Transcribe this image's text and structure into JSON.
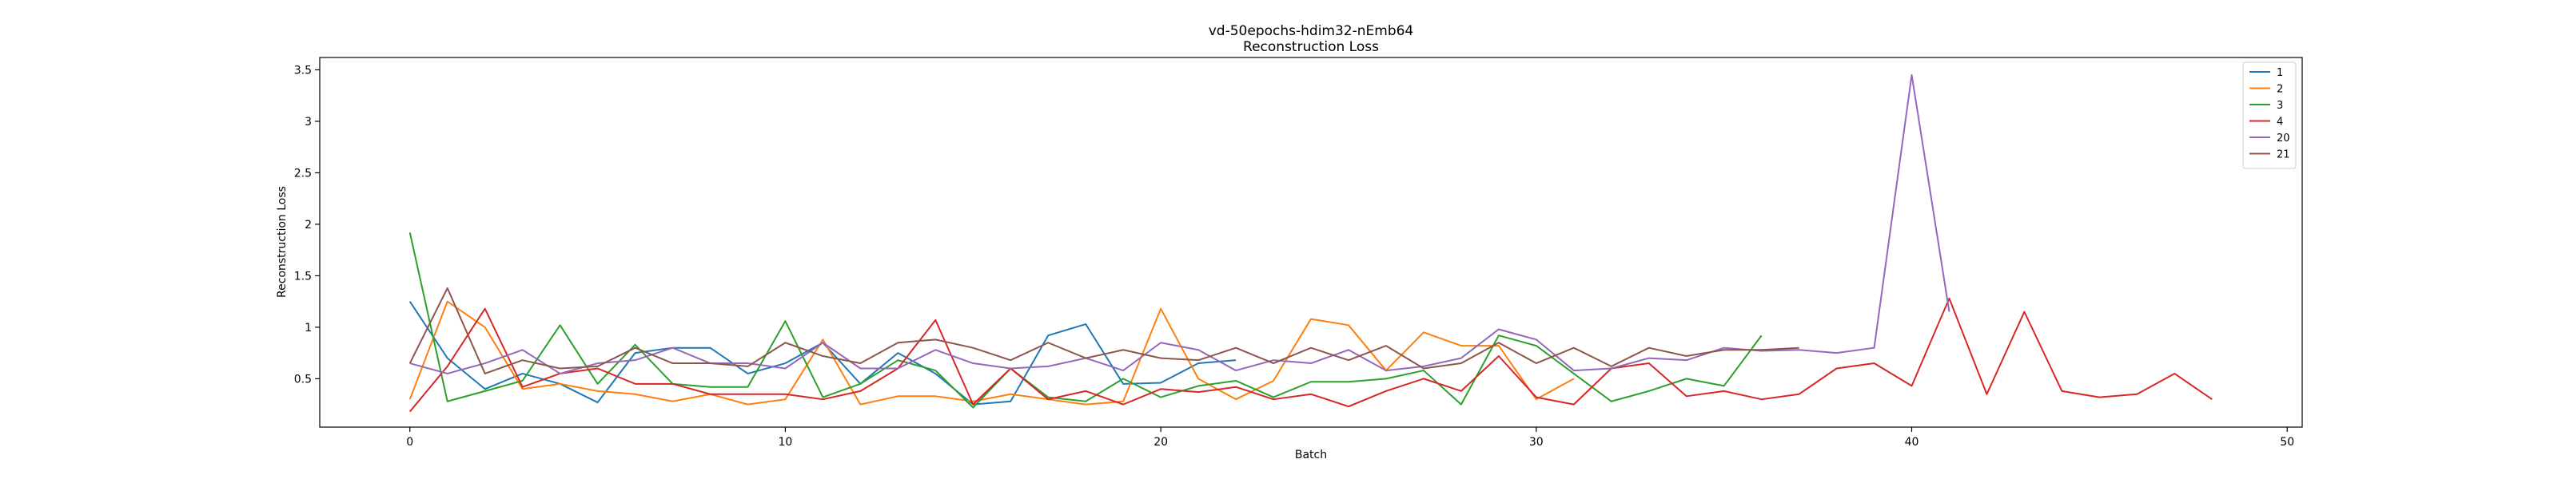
{
  "chart_data": {
    "type": "line",
    "title": "vd-50epochs-hdim32-nEmb64",
    "subtitle": "Reconstruction Loss",
    "xlabel": "Batch",
    "ylabel": "Reconstruction Loss",
    "xlim": [
      -2.4,
      50.4
    ],
    "ylim": [
      0.03,
      3.62
    ],
    "xticks": [
      0,
      10,
      20,
      30,
      40,
      50
    ],
    "yticks": [
      0.5,
      1.0,
      1.5,
      2.0,
      2.5,
      3.0,
      3.5
    ],
    "grid": false,
    "legend_position": "top-right",
    "series": [
      {
        "name": "1",
        "color": "#1f77b4",
        "values": [
          1.25,
          0.7,
          0.4,
          0.55,
          0.45,
          0.27,
          0.75,
          0.8,
          0.8,
          0.55,
          0.65,
          0.85,
          0.45,
          0.75,
          0.55,
          0.25,
          0.28,
          0.92,
          1.03,
          0.45,
          0.46,
          0.65,
          0.68
        ]
      },
      {
        "name": "2",
        "color": "#ff7f0e",
        "values": [
          0.3,
          1.25,
          1.0,
          0.4,
          0.45,
          0.38,
          0.35,
          0.28,
          0.35,
          0.25,
          0.3,
          0.88,
          0.25,
          0.33,
          0.33,
          0.28,
          0.35,
          0.3,
          0.25,
          0.28,
          1.18,
          0.5,
          0.3,
          0.48,
          1.08,
          1.02,
          0.58,
          0.95,
          0.82,
          0.82,
          0.3,
          0.5
        ]
      },
      {
        "name": "3",
        "color": "#2ca02c",
        "values": [
          1.92,
          0.28,
          0.38,
          0.48,
          1.02,
          0.45,
          0.83,
          0.45,
          0.42,
          0.42,
          1.06,
          0.32,
          0.45,
          0.68,
          0.58,
          0.22,
          0.6,
          0.32,
          0.28,
          0.5,
          0.32,
          0.43,
          0.48,
          0.32,
          0.47,
          0.47,
          0.5,
          0.58,
          0.25,
          0.92,
          0.82,
          0.55,
          0.28,
          0.38,
          0.5,
          0.43,
          0.92
        ]
      },
      {
        "name": "4",
        "color": "#d62728",
        "values": [
          0.18,
          0.62,
          1.18,
          0.42,
          0.55,
          0.6,
          0.45,
          0.45,
          0.35,
          0.35,
          0.35,
          0.3,
          0.38,
          0.6,
          1.07,
          0.25,
          0.6,
          0.3,
          0.38,
          0.25,
          0.4,
          0.37,
          0.42,
          0.3,
          0.35,
          0.23,
          0.38,
          0.5,
          0.38,
          0.72,
          0.32,
          0.25,
          0.6,
          0.65,
          0.33,
          0.38,
          0.3,
          0.35,
          0.6,
          0.65,
          0.43,
          1.28,
          0.35,
          1.15,
          0.38,
          0.32,
          0.35,
          0.55,
          0.3
        ]
      },
      {
        "name": "20",
        "color": "#9467bd",
        "values": [
          0.65,
          0.55,
          0.65,
          0.78,
          0.55,
          0.65,
          0.68,
          0.8,
          0.65,
          0.65,
          0.6,
          0.85,
          0.6,
          0.6,
          0.78,
          0.65,
          0.6,
          0.62,
          0.7,
          0.58,
          0.85,
          0.78,
          0.58,
          0.68,
          0.65,
          0.78,
          0.58,
          0.62,
          0.7,
          0.98,
          0.88,
          0.58,
          0.6,
          0.7,
          0.68,
          0.8,
          0.77,
          0.78,
          0.75,
          0.8,
          3.45,
          1.15
        ]
      },
      {
        "name": "21",
        "color": "#8c564b",
        "values": [
          0.65,
          1.38,
          0.55,
          0.68,
          0.6,
          0.62,
          0.8,
          0.65,
          0.65,
          0.62,
          0.85,
          0.72,
          0.65,
          0.85,
          0.88,
          0.8,
          0.68,
          0.85,
          0.7,
          0.78,
          0.7,
          0.68,
          0.8,
          0.65,
          0.8,
          0.68,
          0.82,
          0.6,
          0.65,
          0.85,
          0.65,
          0.8,
          0.62,
          0.8,
          0.72,
          0.78,
          0.78,
          0.8
        ]
      }
    ]
  }
}
